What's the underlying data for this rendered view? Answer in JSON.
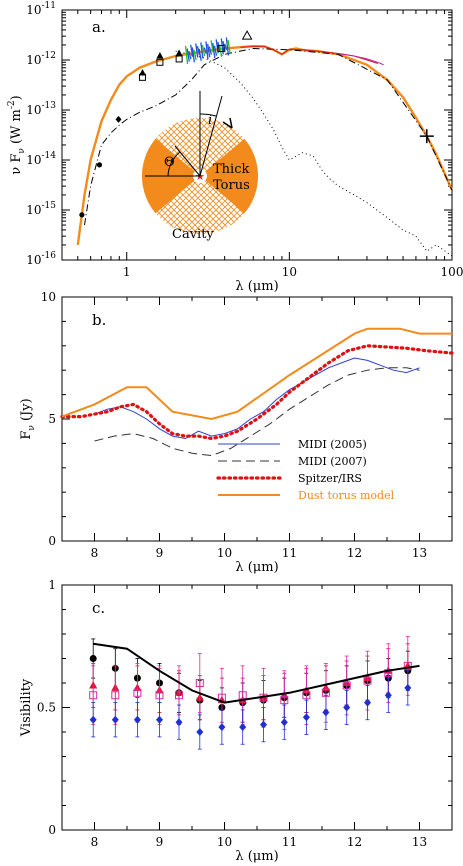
{
  "chart_data": [
    {
      "type": "line",
      "panel_label": "a.",
      "xlabel": "λ (μm)",
      "ylabel": "ν F_ν (W m^-2)",
      "x_scale": "log",
      "y_scale": "log",
      "xlim": [
        0.4,
        100
      ],
      "ylim": [
        1e-16,
        1e-11
      ],
      "x_tick_labels": [
        "1",
        "10",
        "100"
      ],
      "y_tick_labels": [
        "10^-16",
        "10^-15",
        "10^-14",
        "10^-13",
        "10^-12",
        "10^-11"
      ],
      "inset_labels": {
        "angle_theta": "Θ",
        "angle_i": "i",
        "torus": [
          "Thick",
          "Torus"
        ],
        "cavity": "Cavity"
      },
      "series": [
        {
          "role": "model",
          "color": "#f28a1c",
          "x": [
            0.5,
            0.55,
            0.6,
            0.7,
            0.8,
            0.9,
            1.0,
            1.2,
            1.5,
            2,
            3,
            4,
            5,
            6,
            7,
            8,
            9,
            10,
            11,
            12,
            13,
            15,
            20,
            30,
            40,
            50,
            60,
            70,
            80,
            100
          ],
          "y": [
            2e-16,
            2e-15,
            1e-14,
            6e-14,
            1.6e-13,
            3.2e-13,
            4.7e-13,
            7e-13,
            9.3e-13,
            1.2e-12,
            1.5e-12,
            1.7e-12,
            1.8e-12,
            1.9e-12,
            1.85e-12,
            1.6e-12,
            1.3e-12,
            1.6e-12,
            1.7e-12,
            1.6e-12,
            1.55e-12,
            1.5e-12,
            1.3e-12,
            8e-13,
            4e-13,
            1.8e-13,
            7e-14,
            3e-14,
            1.3e-14,
            2.5e-15
          ]
        },
        {
          "role": "dash-dot",
          "color": "#000000",
          "x": [
            0.55,
            0.6,
            0.7,
            0.8,
            0.9,
            1.0,
            1.2,
            1.5,
            2,
            2.5,
            3,
            4,
            6,
            10,
            20,
            40,
            70,
            100
          ],
          "y": [
            5e-16,
            3e-15,
            2e-14,
            3.5e-14,
            5e-14,
            6.5e-14,
            9e-14,
            1.2e-13,
            2e-13,
            4e-13,
            8e-13,
            1.3e-12,
            1.7e-12,
            1.6e-12,
            1.3e-12,
            4e-13,
            3e-14,
            2.5e-15
          ]
        },
        {
          "role": "dotted",
          "color": "#000000",
          "x": [
            2,
            3,
            4,
            5,
            6,
            7,
            8,
            9,
            10,
            12,
            14,
            16,
            18,
            20,
            25,
            30,
            40,
            50,
            60,
            70,
            80,
            100
          ],
          "y": [
            1.5e-12,
            1.1e-12,
            7e-13,
            3.5e-13,
            1.7e-13,
            8e-14,
            4e-14,
            1.8e-14,
            1e-14,
            1.4e-14,
            1.2e-14,
            6e-15,
            4e-15,
            3e-15,
            2e-15,
            1.4e-15,
            7e-16,
            4e-16,
            3e-16,
            1.5e-16,
            2e-16,
            1.2e-16
          ]
        },
        {
          "role": "red-ir",
          "color": "#d41b1b",
          "x": [
            5,
            7,
            8,
            9,
            10,
            12,
            15,
            20,
            25,
            30,
            35
          ],
          "y": [
            1.8e-12,
            1.9e-12,
            1.6e-12,
            1.3e-12,
            1.65e-12,
            1.6e-12,
            1.5e-12,
            1.35e-12,
            1.2e-12,
            1e-12,
            8.5e-13
          ]
        },
        {
          "role": "purple-ir",
          "color": "#c01fa6",
          "x": [
            20,
            25,
            30,
            35,
            38
          ],
          "y": [
            1.35e-12,
            1.2e-12,
            1.05e-12,
            9e-13,
            8e-13
          ]
        }
      ],
      "points": [
        {
          "x": 0.53,
          "y": 8e-16,
          "marker": "dot"
        },
        {
          "x": 0.68,
          "y": 8e-15,
          "marker": "dot"
        },
        {
          "x": 0.89,
          "y": 6.5e-14,
          "marker": "diamond"
        },
        {
          "x": 1.25,
          "y": 5.5e-13,
          "marker": "triangle"
        },
        {
          "x": 1.25,
          "y": 4.5e-13,
          "marker": "square"
        },
        {
          "x": 1.6,
          "y": 1.2e-12,
          "marker": "triangle"
        },
        {
          "x": 1.6,
          "y": 9e-13,
          "marker": "square"
        },
        {
          "x": 2.1,
          "y": 1.35e-12,
          "marker": "triangle"
        },
        {
          "x": 2.1,
          "y": 1.05e-12,
          "marker": "square"
        },
        {
          "x": 3.8,
          "y": 1.7e-12,
          "marker": "square"
        },
        {
          "x": 5.5,
          "y": 3e-12,
          "marker": "open-triangle"
        },
        {
          "x": 70,
          "y": 3e-14,
          "marker": "cross"
        }
      ]
    },
    {
      "type": "line",
      "panel_label": "b.",
      "xlabel": "λ (μm)",
      "ylabel": "F_ν (Jy)",
      "xlim": [
        7.5,
        13.5
      ],
      "ylim": [
        0,
        10
      ],
      "x_ticks": [
        8,
        9,
        10,
        11,
        12,
        13
      ],
      "y_ticks": [
        0,
        5,
        10
      ],
      "legend_position": "lower-right",
      "series": [
        {
          "name": "MIDI (2005)",
          "color": "#2f3fcf",
          "style": "solid",
          "x": [
            8.0,
            8.2,
            8.4,
            8.6,
            8.8,
            9.0,
            9.2,
            9.4,
            9.6,
            9.8,
            10.0,
            10.2,
            10.4,
            10.6,
            10.8,
            11.0,
            11.2,
            11.4,
            11.6,
            11.8,
            12.0,
            12.2,
            12.4,
            12.6,
            12.8,
            13.0
          ],
          "y": [
            5.2,
            5.4,
            5.5,
            5.3,
            5.0,
            4.6,
            4.3,
            4.2,
            4.5,
            4.3,
            4.4,
            4.6,
            5.0,
            5.3,
            5.8,
            6.2,
            6.5,
            6.8,
            7.1,
            7.3,
            7.5,
            7.4,
            7.2,
            7.0,
            6.9,
            7.1
          ]
        },
        {
          "name": "MIDI (2007)",
          "color": "#333333",
          "style": "dashed",
          "x": [
            8.0,
            8.3,
            8.6,
            8.9,
            9.2,
            9.5,
            9.8,
            10.1,
            10.4,
            10.7,
            11.0,
            11.3,
            11.6,
            11.9,
            12.2,
            12.5,
            12.8,
            13.0
          ],
          "y": [
            4.1,
            4.3,
            4.4,
            4.2,
            3.8,
            3.6,
            3.5,
            3.8,
            4.3,
            4.8,
            5.4,
            5.9,
            6.4,
            6.8,
            7.0,
            7.1,
            7.1,
            7.0
          ]
        },
        {
          "name": "Spitzer/IRS",
          "color": "#e01010",
          "style": "dotted",
          "x": [
            7.5,
            7.8,
            8.0,
            8.2,
            8.4,
            8.6,
            8.8,
            9.0,
            9.2,
            9.4,
            9.6,
            9.8,
            10.0,
            10.2,
            10.5,
            10.8,
            11.0,
            11.3,
            11.6,
            11.9,
            12.2,
            12.5,
            12.8,
            13.1,
            13.5
          ],
          "y": [
            5.1,
            5.1,
            5.2,
            5.3,
            5.5,
            5.6,
            5.3,
            4.8,
            4.4,
            4.3,
            4.3,
            4.2,
            4.3,
            4.5,
            5.0,
            5.6,
            6.1,
            6.7,
            7.3,
            7.8,
            8.0,
            7.95,
            7.9,
            7.8,
            7.7
          ]
        },
        {
          "name": "Dust torus model",
          "color": "#f28a1c",
          "style": "solid",
          "x": [
            7.5,
            8.0,
            8.5,
            8.8,
            9.2,
            9.8,
            10.2,
            11.0,
            12.0,
            12.2,
            12.7,
            13.0,
            13.5
          ],
          "y": [
            5.1,
            5.6,
            6.3,
            6.3,
            5.3,
            5.0,
            5.3,
            6.8,
            8.5,
            8.7,
            8.7,
            8.5,
            8.5
          ]
        }
      ]
    },
    {
      "type": "scatter",
      "panel_label": "c.",
      "xlabel": "λ (μm)",
      "ylabel": "Visibility",
      "xlim": [
        7.5,
        13.5
      ],
      "ylim": [
        0,
        1
      ],
      "x_ticks": [
        8,
        9,
        10,
        11,
        12,
        13
      ],
      "y_tick_labels": [
        "0",
        "0.5",
        "1"
      ],
      "x_points": [
        7.98,
        8.32,
        8.66,
        9.0,
        9.3,
        9.62,
        9.96,
        10.28,
        10.6,
        10.92,
        11.26,
        11.56,
        11.88,
        12.2,
        12.52,
        12.82
      ],
      "series": [
        {
          "role": "black-dots",
          "color": "#000000",
          "marker": "dot",
          "y": [
            0.7,
            0.66,
            0.62,
            0.6,
            0.56,
            0.53,
            0.5,
            0.52,
            0.53,
            0.54,
            0.56,
            0.57,
            0.59,
            0.61,
            0.62,
            0.65
          ],
          "err": 0.08
        },
        {
          "role": "red-triangles",
          "color": "#e0103a",
          "marker": "triangle",
          "y": [
            0.59,
            0.58,
            0.58,
            0.57,
            0.56,
            0.54,
            0.53,
            0.53,
            0.54,
            0.55,
            0.57,
            0.58,
            0.6,
            0.62,
            0.65,
            0.67
          ],
          "err": 0.09
        },
        {
          "role": "magenta-open-squares",
          "color": "#d62aa7",
          "marker": "open-square",
          "y": [
            0.55,
            0.55,
            0.56,
            0.55,
            0.55,
            0.6,
            0.54,
            0.55,
            0.54,
            0.53,
            0.55,
            0.56,
            0.59,
            0.61,
            0.64,
            0.67
          ],
          "err": 0.12
        },
        {
          "role": "blue-diamonds",
          "color": "#1f2fd4",
          "marker": "diamond",
          "y": [
            0.45,
            0.45,
            0.45,
            0.45,
            0.44,
            0.4,
            0.42,
            0.42,
            0.43,
            0.44,
            0.46,
            0.48,
            0.5,
            0.52,
            0.55,
            0.58
          ],
          "err": 0.07
        },
        {
          "role": "model-line",
          "color": "#000000",
          "marker": "line",
          "x": [
            7.98,
            8.5,
            9.0,
            9.5,
            10.0,
            10.5,
            11.0,
            11.5,
            12.0,
            12.5,
            13.0
          ],
          "y": [
            0.76,
            0.74,
            0.65,
            0.57,
            0.52,
            0.54,
            0.56,
            0.59,
            0.62,
            0.65,
            0.67
          ]
        }
      ]
    }
  ]
}
